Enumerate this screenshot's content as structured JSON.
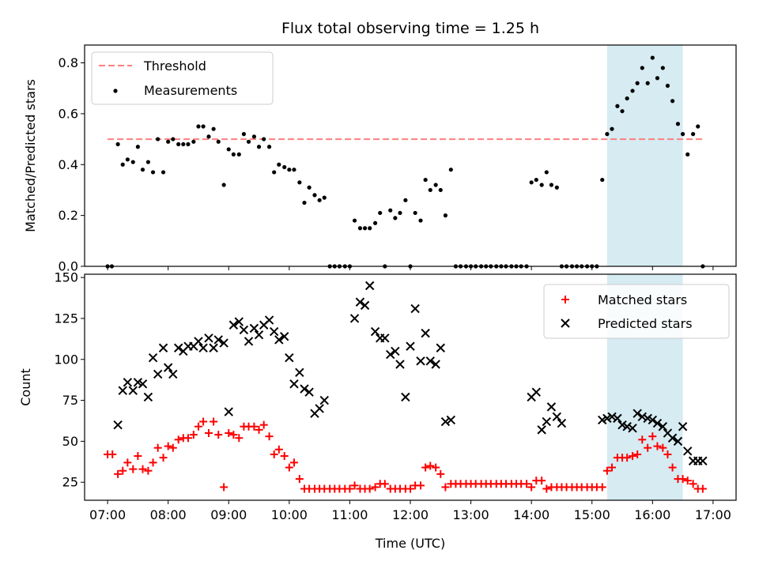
{
  "chart_data": [
    {
      "type": "scatter",
      "title": "Flux total observing time = 1.25 h",
      "xlabel": "",
      "ylabel": "Matched/Predicted stars",
      "xlim": [
        6.62,
        17.38
      ],
      "ylim": [
        0,
        0.87
      ],
      "yticks": [
        0,
        0.2,
        0.4,
        0.6,
        0.8
      ],
      "ytick_labels": [
        "0.0",
        "0.2",
        "0.4",
        "0.6",
        "0.8"
      ],
      "xticks": [
        7,
        8,
        9,
        10,
        11,
        12,
        13,
        14,
        15,
        16,
        17
      ],
      "xtick_labels": [
        "",
        "",
        "",
        "",
        "",
        "",
        "",
        "",
        "",
        "",
        ""
      ],
      "highlight_span": {
        "x0": 15.25,
        "x1": 16.5,
        "color": "#add8e6"
      },
      "legend": {
        "placement": "upper-left",
        "entries": [
          "Threshold",
          "Measurements"
        ]
      },
      "series": [
        {
          "name": "Threshold",
          "kind": "line",
          "color": "#ff7f7f",
          "x": [
            7.0,
            16.85
          ],
          "y": [
            0.5,
            0.5
          ]
        },
        {
          "name": "Measurements",
          "kind": "scatter",
          "color": "#000000",
          "x": [
            7.0,
            7.07,
            7.17,
            7.25,
            7.33,
            7.42,
            7.5,
            7.58,
            7.67,
            7.75,
            7.83,
            7.92,
            8.0,
            8.08,
            8.17,
            8.25,
            8.33,
            8.42,
            8.5,
            8.58,
            8.67,
            8.75,
            8.83,
            8.92,
            9.0,
            9.08,
            9.17,
            9.25,
            9.33,
            9.42,
            9.5,
            9.58,
            9.67,
            9.75,
            9.83,
            9.92,
            10.0,
            10.08,
            10.17,
            10.25,
            10.33,
            10.42,
            10.5,
            10.58,
            10.67,
            10.75,
            10.83,
            10.92,
            11.0,
            11.08,
            11.17,
            11.25,
            11.33,
            11.42,
            11.5,
            11.58,
            11.67,
            11.75,
            11.83,
            11.92,
            12.0,
            12.08,
            12.17,
            12.25,
            12.33,
            12.42,
            12.5,
            12.58,
            12.67,
            12.75,
            12.83,
            12.92,
            13.0,
            13.08,
            13.17,
            13.25,
            13.33,
            13.42,
            13.5,
            13.58,
            13.67,
            13.75,
            13.83,
            13.92,
            14.0,
            14.08,
            14.17,
            14.25,
            14.33,
            14.42,
            14.5,
            14.58,
            14.67,
            14.75,
            14.83,
            14.92,
            15.0,
            15.08,
            15.17,
            15.25,
            15.33,
            15.42,
            15.5,
            15.58,
            15.67,
            15.75,
            15.83,
            15.92,
            16.0,
            16.08,
            16.17,
            16.25,
            16.33,
            16.42,
            16.5,
            16.58,
            16.67,
            16.75,
            16.83
          ],
          "y": [
            0.0,
            0.0,
            0.48,
            0.4,
            0.42,
            0.41,
            0.47,
            0.38,
            0.41,
            0.37,
            0.5,
            0.37,
            0.49,
            0.5,
            0.48,
            0.48,
            0.48,
            0.49,
            0.55,
            0.55,
            0.51,
            0.54,
            0.49,
            0.32,
            0.46,
            0.44,
            0.44,
            0.52,
            0.49,
            0.51,
            0.47,
            0.5,
            0.47,
            0.37,
            0.4,
            0.39,
            0.38,
            0.38,
            0.33,
            0.25,
            0.31,
            0.28,
            0.26,
            0.27,
            0.0,
            0.0,
            0.0,
            0.0,
            0.0,
            0.18,
            0.15,
            0.15,
            0.15,
            0.17,
            0.21,
            0.0,
            0.22,
            0.19,
            0.21,
            0.26,
            0.0,
            0.21,
            0.18,
            0.34,
            0.3,
            0.32,
            0.3,
            0.2,
            0.38,
            0.0,
            0.0,
            0.0,
            0.0,
            0.0,
            0.0,
            0.0,
            0.0,
            0.0,
            0.0,
            0.0,
            0.0,
            0.0,
            0.0,
            0.0,
            0.33,
            0.34,
            0.32,
            0.37,
            0.32,
            0.31,
            0.0,
            0.0,
            0.0,
            0.0,
            0.0,
            0.0,
            0.0,
            0.0,
            0.34,
            0.52,
            0.54,
            0.63,
            0.61,
            0.66,
            0.69,
            0.72,
            0.78,
            0.72,
            0.82,
            0.74,
            0.78,
            0.71,
            0.65,
            0.56,
            0.52,
            0.44,
            0.52,
            0.55,
            0.0
          ]
        }
      ]
    },
    {
      "type": "scatter",
      "title": "",
      "xlabel": "Time (UTC)",
      "ylabel": "Count",
      "xlim": [
        6.62,
        17.38
      ],
      "ylim": [
        14,
        152
      ],
      "yticks": [
        25,
        50,
        75,
        100,
        125,
        150
      ],
      "ytick_labels": [
        "25",
        "50",
        "75",
        "100",
        "125",
        "150"
      ],
      "xticks": [
        7,
        8,
        9,
        10,
        11,
        12,
        13,
        14,
        15,
        16,
        17
      ],
      "xtick_labels": [
        "07:00",
        "08:00",
        "09:00",
        "10:00",
        "11:00",
        "12:00",
        "13:00",
        "14:00",
        "15:00",
        "16:00",
        "17:00"
      ],
      "highlight_span": {
        "x0": 15.25,
        "x1": 16.5,
        "color": "#add8e6"
      },
      "legend": {
        "placement": "upper-right",
        "entries": [
          "Matched stars",
          "Predicted stars"
        ]
      },
      "series": [
        {
          "name": "Matched stars",
          "marker": "plus",
          "color": "#ff0000",
          "x": [
            7.0,
            7.08,
            7.17,
            7.25,
            7.33,
            7.42,
            7.5,
            7.58,
            7.67,
            7.75,
            7.83,
            7.92,
            8.0,
            8.08,
            8.17,
            8.25,
            8.33,
            8.42,
            8.5,
            8.58,
            8.67,
            8.75,
            8.83,
            8.92,
            9.0,
            9.08,
            9.17,
            9.25,
            9.33,
            9.42,
            9.5,
            9.58,
            9.67,
            9.75,
            9.83,
            9.92,
            10.0,
            10.08,
            10.17,
            10.25,
            10.33,
            10.42,
            10.5,
            10.58,
            10.67,
            10.75,
            10.83,
            10.92,
            11.0,
            11.08,
            11.17,
            11.25,
            11.33,
            11.42,
            11.5,
            11.58,
            11.67,
            11.75,
            11.83,
            11.92,
            12.0,
            12.08,
            12.17,
            12.25,
            12.33,
            12.42,
            12.5,
            12.58,
            12.67,
            12.75,
            12.83,
            12.92,
            13.0,
            13.08,
            13.17,
            13.25,
            13.33,
            13.42,
            13.5,
            13.58,
            13.67,
            13.75,
            13.83,
            13.92,
            14.0,
            14.08,
            14.17,
            14.25,
            14.33,
            14.42,
            14.5,
            14.58,
            14.67,
            14.75,
            14.83,
            14.92,
            15.0,
            15.08,
            15.17,
            15.25,
            15.33,
            15.42,
            15.5,
            15.58,
            15.67,
            15.75,
            15.83,
            15.92,
            16.0,
            16.08,
            16.17,
            16.25,
            16.33,
            16.42,
            16.5,
            16.58,
            16.67,
            16.75,
            16.83
          ],
          "y": [
            42,
            42,
            30,
            32,
            37,
            33,
            41,
            33,
            32,
            37,
            46,
            40,
            47,
            46,
            51,
            52,
            52,
            54,
            59,
            62,
            55,
            62,
            54,
            22,
            55,
            54,
            52,
            59,
            59,
            59,
            57,
            60,
            53,
            42,
            45,
            41,
            34,
            37,
            27,
            21,
            21,
            21,
            21,
            21,
            21,
            21,
            21,
            21,
            21,
            23,
            21,
            21,
            21,
            22,
            24,
            24,
            21,
            21,
            21,
            21,
            21,
            23,
            23,
            34,
            35,
            34,
            30,
            22,
            24,
            24,
            24,
            24,
            24,
            24,
            24,
            24,
            24,
            24,
            24,
            24,
            24,
            24,
            24,
            24,
            22,
            26,
            26,
            21,
            22,
            22,
            22,
            22,
            22,
            22,
            22,
            22,
            22,
            22,
            22,
            32,
            34,
            40,
            40,
            40,
            41,
            42,
            51,
            46,
            53,
            47,
            46,
            42,
            34,
            27,
            27,
            26,
            24,
            21,
            21
          ]
        },
        {
          "name": "Predicted stars",
          "marker": "x",
          "color": "#000000",
          "x": [
            7.17,
            7.25,
            7.33,
            7.42,
            7.5,
            7.58,
            7.67,
            7.75,
            7.83,
            7.92,
            8.0,
            8.08,
            8.17,
            8.25,
            8.33,
            8.42,
            8.5,
            8.58,
            8.67,
            8.75,
            8.83,
            8.92,
            9.0,
            9.08,
            9.17,
            9.25,
            9.33,
            9.42,
            9.5,
            9.58,
            9.67,
            9.75,
            9.83,
            9.92,
            10.0,
            10.08,
            10.17,
            10.25,
            10.33,
            10.42,
            10.5,
            10.58,
            11.08,
            11.17,
            11.25,
            11.33,
            11.42,
            11.5,
            11.58,
            11.67,
            11.75,
            11.83,
            11.92,
            12.0,
            12.08,
            12.17,
            12.25,
            12.33,
            12.42,
            12.5,
            12.58,
            12.67,
            14.0,
            14.08,
            14.17,
            14.25,
            14.33,
            14.42,
            14.5,
            15.17,
            15.25,
            15.33,
            15.42,
            15.5,
            15.58,
            15.67,
            15.75,
            15.83,
            15.92,
            16.0,
            16.08,
            16.17,
            16.25,
            16.33,
            16.42,
            16.5,
            16.58,
            16.67,
            16.75,
            16.83
          ],
          "y": [
            60,
            81,
            86,
            81,
            86,
            85,
            77,
            101,
            91,
            107,
            95,
            91,
            107,
            105,
            108,
            108,
            111,
            107,
            113,
            107,
            112,
            110,
            68,
            121,
            123,
            118,
            111,
            119,
            115,
            121,
            124,
            117,
            112,
            114,
            101,
            85,
            92,
            82,
            80,
            67,
            70,
            75,
            125,
            135,
            133,
            145,
            117,
            113,
            113,
            103,
            105,
            97,
            77,
            108,
            131,
            99,
            116,
            99,
            97,
            107,
            62,
            63,
            77,
            80,
            57,
            62,
            71,
            65,
            61,
            63,
            64,
            65,
            64,
            60,
            59,
            58,
            67,
            65,
            64,
            63,
            61,
            59,
            55,
            52,
            50,
            59,
            44,
            38,
            38,
            38
          ],
          "y_note": ""
        }
      ]
    }
  ]
}
